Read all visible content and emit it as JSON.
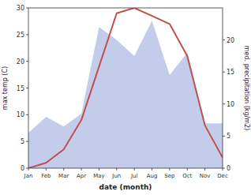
{
  "chart_data": {
    "type": "line",
    "categories": [
      "Jan",
      "Feb",
      "Mar",
      "Apr",
      "May",
      "Jun",
      "Jul",
      "Aug",
      "Sep",
      "Oct",
      "Nov",
      "Dec"
    ],
    "series": [
      {
        "type": "area",
        "axis": "y2",
        "color": "#b8c4e8",
        "values": [
          5.5,
          8.0,
          6.5,
          8.5,
          22.0,
          20.0,
          17.5,
          23.0,
          14.5,
          18.0,
          7.0,
          7.0
        ]
      },
      {
        "type": "line",
        "color": "#c0504d",
        "values": [
          0.0,
          1.0,
          3.5,
          9.0,
          19.0,
          29.0,
          30.0,
          28.5,
          27.0,
          21.0,
          8.0,
          2.0
        ]
      }
    ],
    "xlabel": "date (month)",
    "ylabel": "max temp (C)",
    "y2label": "med. precipitation (kg/m2)",
    "ylim": [
      0,
      30
    ],
    "yticks": [
      0,
      5,
      10,
      15,
      20,
      25,
      30
    ],
    "y2lim": [
      0,
      25
    ],
    "y2ticks": [
      0,
      5,
      10,
      15,
      20
    ],
    "grid": false
  }
}
